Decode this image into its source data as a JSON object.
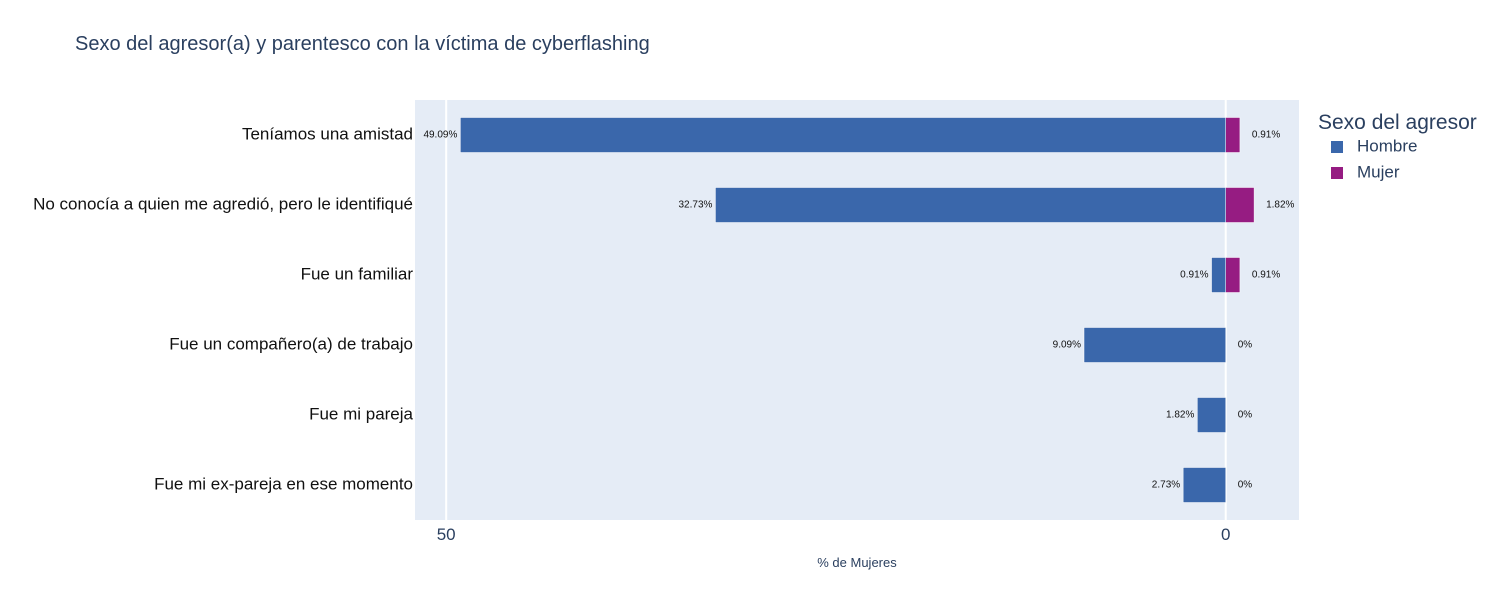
{
  "chart_data": {
    "type": "bar",
    "orientation": "horizontal",
    "barmode": "relative",
    "title": "Sexo del agresor(a) y parentesco con la víctima de cyberflashing",
    "xlabel": "% de Mujeres",
    "ylabel": "",
    "x_direction": "reversed",
    "x_tick_values": [
      50,
      0
    ],
    "x_tick_labels": [
      "50",
      "0"
    ],
    "xlim": [
      52,
      -4.7
    ],
    "categories": [
      "Teníamos una amistad",
      "No conocía a quien me agredió, pero le identifiqué",
      "Fue un familiar",
      "Fue un compañero(a) de trabajo",
      "Fue mi pareja",
      "Fue mi ex-pareja en ese momento"
    ],
    "series": [
      {
        "name": "Hombre",
        "color": "#3a67ab",
        "values": [
          49.09,
          32.73,
          0.91,
          9.09,
          1.82,
          2.73
        ],
        "labels": [
          "49.09%",
          "32.73%",
          "0.91%",
          "9.09%",
          "1.82%",
          "2.73%"
        ]
      },
      {
        "name": "Mujer",
        "color": "#961c82",
        "values": [
          0.91,
          1.82,
          0.91,
          0,
          0,
          0
        ],
        "labels": [
          "0.91%",
          "1.82%",
          "0.91%",
          "0%",
          "0%",
          "0%"
        ]
      }
    ],
    "legend": {
      "title": "Sexo del agresor",
      "placement": "right"
    },
    "plot_background": "#e5ecf6",
    "grid": true
  }
}
